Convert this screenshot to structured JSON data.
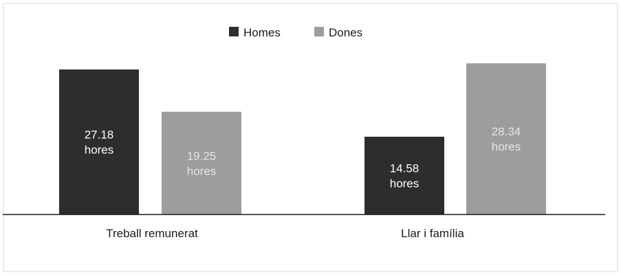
{
  "chart_data": {
    "type": "bar",
    "categories": [
      "Treball remunerat",
      "Llar i família"
    ],
    "series": [
      {
        "name": "Homes",
        "values": [
          27.18,
          14.58
        ],
        "color": "#2d2d2d",
        "label_color": "#ffffff"
      },
      {
        "name": "Dones",
        "values": [
          19.25,
          28.34
        ],
        "color": "#9d9d9d",
        "label_color": "#e6e6e6"
      }
    ],
    "data_labels": [
      [
        [
          "27.18",
          "hores"
        ],
        [
          "14.58",
          "hores"
        ]
      ],
      [
        [
          "19.25",
          "hores"
        ],
        [
          "28.34",
          "hores"
        ]
      ]
    ],
    "legend_position": "top-center",
    "grid": false,
    "ylim": [
      0,
      30
    ]
  }
}
